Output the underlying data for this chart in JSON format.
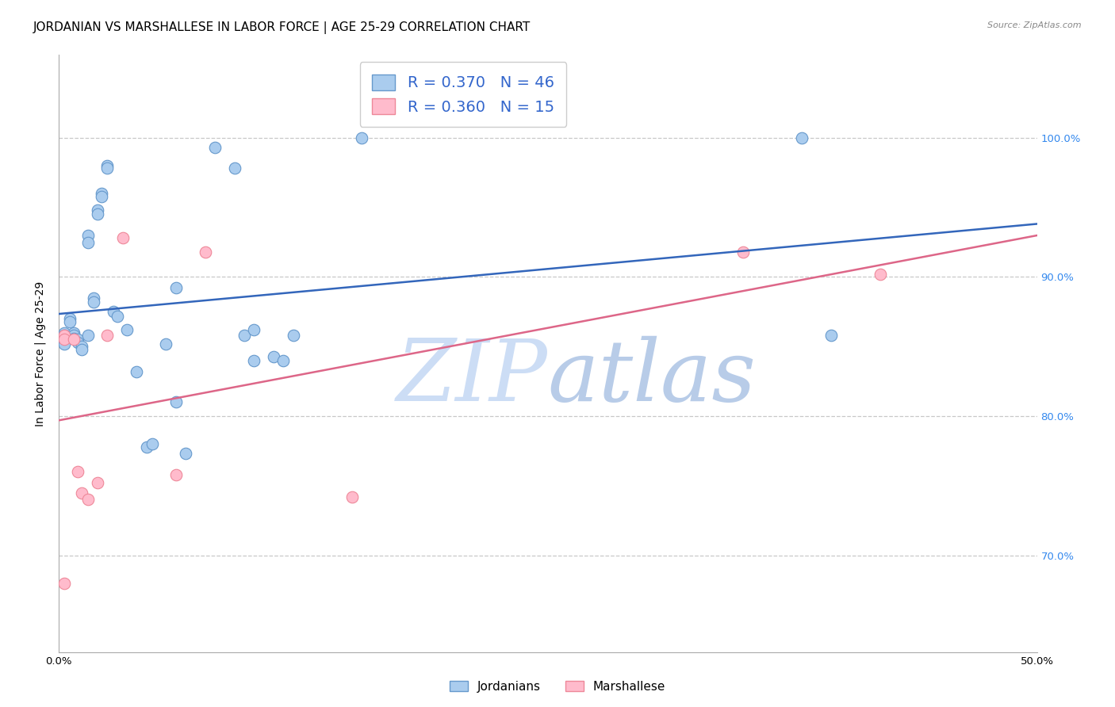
{
  "title": "JORDANIAN VS MARSHALLESE IN LABOR FORCE | AGE 25-29 CORRELATION CHART",
  "source": "Source: ZipAtlas.com",
  "ylabel_label": "In Labor Force | Age 25-29",
  "xlim": [
    0.0,
    0.5
  ],
  "ylim": [
    0.63,
    1.06
  ],
  "yticks": [
    0.7,
    0.8,
    0.9,
    1.0
  ],
  "ytick_labels": [
    "70.0%",
    "80.0%",
    "90.0%",
    "100.0%"
  ],
  "xticks": [
    0.0,
    0.05,
    0.1,
    0.15,
    0.2,
    0.25,
    0.3,
    0.35,
    0.4,
    0.45,
    0.5
  ],
  "xtick_labels": [
    "0.0%",
    "",
    "",
    "",
    "",
    "",
    "",
    "",
    "",
    "",
    "50.0%"
  ],
  "background_color": "#ffffff",
  "grid_color": "#c8c8c8",
  "jordanians_color": "#aaccee",
  "jordanians_edge_color": "#6699cc",
  "marshallese_color": "#ffbbcc",
  "marshallese_edge_color": "#ee8899",
  "jordanians_R": 0.37,
  "jordanians_N": 46,
  "marshallese_R": 0.36,
  "marshallese_N": 15,
  "jordanians_line_color": "#3366bb",
  "marshallese_line_color": "#dd6688",
  "jordanians_x": [
    0.003,
    0.003,
    0.003,
    0.003,
    0.003,
    0.006,
    0.006,
    0.008,
    0.008,
    0.008,
    0.01,
    0.01,
    0.012,
    0.012,
    0.015,
    0.015,
    0.015,
    0.018,
    0.018,
    0.02,
    0.02,
    0.022,
    0.022,
    0.025,
    0.025,
    0.028,
    0.03,
    0.035,
    0.04,
    0.045,
    0.048,
    0.055,
    0.06,
    0.065,
    0.08,
    0.09,
    0.095,
    0.1,
    0.1,
    0.11,
    0.115,
    0.12,
    0.155,
    0.38,
    0.395,
    0.06
  ],
  "jordanians_y": [
    0.86,
    0.858,
    0.856,
    0.854,
    0.852,
    0.87,
    0.868,
    0.86,
    0.858,
    0.856,
    0.855,
    0.853,
    0.85,
    0.848,
    0.93,
    0.925,
    0.858,
    0.885,
    0.882,
    0.948,
    0.945,
    0.96,
    0.958,
    0.98,
    0.978,
    0.875,
    0.872,
    0.862,
    0.832,
    0.778,
    0.78,
    0.852,
    0.892,
    0.773,
    0.993,
    0.978,
    0.858,
    0.862,
    0.84,
    0.843,
    0.84,
    0.858,
    1.0,
    1.0,
    0.858,
    0.81
  ],
  "marshallese_x": [
    0.003,
    0.003,
    0.003,
    0.008,
    0.01,
    0.012,
    0.015,
    0.02,
    0.025,
    0.033,
    0.06,
    0.075,
    0.15,
    0.35,
    0.42
  ],
  "marshallese_y": [
    0.858,
    0.855,
    0.68,
    0.855,
    0.76,
    0.745,
    0.74,
    0.752,
    0.858,
    0.928,
    0.758,
    0.918,
    0.742,
    0.918,
    0.902
  ],
  "title_fontsize": 11,
  "axis_label_fontsize": 10,
  "tick_fontsize": 9.5,
  "legend_fontsize": 14,
  "marker_size": 110,
  "line_width": 1.8,
  "right_tick_color": "#3388ee",
  "watermark_zip_color": "#ccddf5",
  "watermark_atlas_color": "#b8cce8"
}
